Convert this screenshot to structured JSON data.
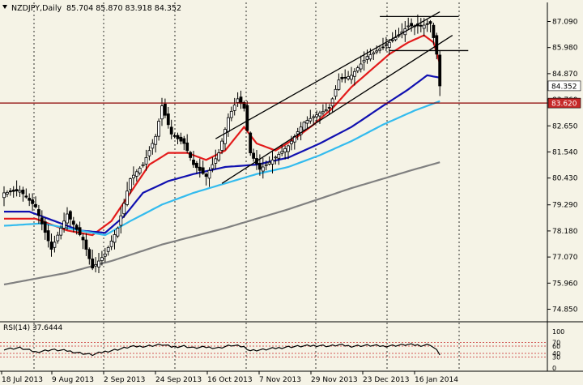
{
  "header": {
    "symbol_label": "NZDJPY,Daily",
    "ohlc": "85.704 85.870 83.918 84.352"
  },
  "rsi_header": "RSI(14) 37.6444",
  "colors": {
    "background": "#F5F3E6",
    "bull_candle": "#FFFFFF",
    "bear_candle": "#000000",
    "ema_fast": "#E31B1B",
    "ema_mid": "#1010B0",
    "ema_slow": "#33BBEE",
    "sma_long": "#808080",
    "support": "#8B0000",
    "price_badge": "#FFFFFF",
    "support_badge": "#C62828",
    "rsi_line": "#000000",
    "rsi_levels": "#C62828"
  },
  "chart_data": {
    "type": "candlestick",
    "instrument": "NZDJPY",
    "timeframe": "Daily",
    "ylim": [
      74.35,
      87.9
    ],
    "y_ticks": [
      "87.090",
      "85.980",
      "84.870",
      "83.760",
      "82.650",
      "81.540",
      "80.430",
      "79.290",
      "78.180",
      "77.070",
      "75.960",
      "74.850"
    ],
    "y_tick_values": [
      87.09,
      85.98,
      84.87,
      83.76,
      82.65,
      81.54,
      80.43,
      79.29,
      78.18,
      77.07,
      75.96,
      74.85
    ],
    "x_labels": [
      "18 Jul 2013",
      "9 Aug 2013",
      "2 Sep 2013",
      "24 Sep 2013",
      "16 Oct 2013",
      "7 Nov 2013",
      "29 Nov 2013",
      "23 Dec 2013",
      "16 Jan 2014"
    ],
    "last_price": 84.352,
    "last_price_label": "84.352",
    "support_level": 83.62,
    "support_label": "83.620",
    "close_anchors": [
      [
        0,
        79.8
      ],
      [
        5,
        79.9
      ],
      [
        10,
        79.2
      ],
      [
        15,
        77.4
      ],
      [
        20,
        78.9
      ],
      [
        25,
        77.8
      ],
      [
        28,
        76.6
      ],
      [
        32,
        77.2
      ],
      [
        36,
        78.3
      ],
      [
        40,
        80.4
      ],
      [
        44,
        81.0
      ],
      [
        48,
        82.2
      ],
      [
        50,
        83.5
      ],
      [
        53,
        82.3
      ],
      [
        57,
        81.9
      ],
      [
        60,
        81.0
      ],
      [
        64,
        80.5
      ],
      [
        68,
        81.5
      ],
      [
        71,
        83.0
      ],
      [
        74,
        83.8
      ],
      [
        76,
        83.4
      ],
      [
        78,
        81.5
      ],
      [
        81,
        80.8
      ],
      [
        85,
        81.2
      ],
      [
        90,
        81.8
      ],
      [
        95,
        82.8
      ],
      [
        100,
        83.2
      ],
      [
        103,
        83.4
      ],
      [
        106,
        84.6
      ],
      [
        110,
        84.8
      ],
      [
        115,
        85.6
      ],
      [
        120,
        86.0
      ],
      [
        124,
        86.4
      ],
      [
        128,
        86.9
      ],
      [
        132,
        86.9
      ],
      [
        135,
        87.0
      ],
      [
        136,
        86.4
      ],
      [
        137,
        85.7
      ],
      [
        138,
        84.35
      ]
    ],
    "ma_series": [
      {
        "name": "EMA fast",
        "color_key": "ema_fast",
        "values": [
          [
            0,
            78.7
          ],
          [
            10,
            78.7
          ],
          [
            20,
            78.2
          ],
          [
            28,
            78.0
          ],
          [
            34,
            78.6
          ],
          [
            40,
            79.8
          ],
          [
            46,
            81.0
          ],
          [
            52,
            81.5
          ],
          [
            58,
            81.5
          ],
          [
            64,
            81.2
          ],
          [
            70,
            81.6
          ],
          [
            76,
            82.6
          ],
          [
            80,
            81.9
          ],
          [
            86,
            81.6
          ],
          [
            92,
            82.1
          ],
          [
            98,
            82.7
          ],
          [
            104,
            83.4
          ],
          [
            110,
            84.3
          ],
          [
            116,
            85.0
          ],
          [
            122,
            85.7
          ],
          [
            128,
            86.2
          ],
          [
            133,
            86.5
          ],
          [
            136,
            86.2
          ],
          [
            138,
            85.3
          ]
        ]
      },
      {
        "name": "EMA mid",
        "color_key": "ema_mid",
        "values": [
          [
            0,
            79.0
          ],
          [
            8,
            79.0
          ],
          [
            16,
            78.6
          ],
          [
            24,
            78.2
          ],
          [
            32,
            78.1
          ],
          [
            38,
            78.8
          ],
          [
            44,
            79.8
          ],
          [
            52,
            80.3
          ],
          [
            60,
            80.6
          ],
          [
            70,
            80.9
          ],
          [
            80,
            81.0
          ],
          [
            90,
            81.3
          ],
          [
            100,
            81.9
          ],
          [
            110,
            82.6
          ],
          [
            120,
            83.5
          ],
          [
            128,
            84.2
          ],
          [
            134,
            84.8
          ],
          [
            138,
            84.7
          ]
        ]
      },
      {
        "name": "EMA slow",
        "color_key": "ema_slow",
        "values": [
          [
            0,
            78.4
          ],
          [
            12,
            78.5
          ],
          [
            24,
            78.2
          ],
          [
            32,
            78.0
          ],
          [
            40,
            78.6
          ],
          [
            50,
            79.3
          ],
          [
            60,
            79.8
          ],
          [
            70,
            80.2
          ],
          [
            80,
            80.6
          ],
          [
            90,
            80.9
          ],
          [
            100,
            81.4
          ],
          [
            110,
            82.0
          ],
          [
            120,
            82.7
          ],
          [
            130,
            83.3
          ],
          [
            138,
            83.7
          ]
        ]
      },
      {
        "name": "SMA long",
        "color_key": "sma_long",
        "values": [
          [
            0,
            75.9
          ],
          [
            20,
            76.4
          ],
          [
            34,
            76.9
          ],
          [
            50,
            77.6
          ],
          [
            70,
            78.3
          ],
          [
            90,
            79.1
          ],
          [
            110,
            80.0
          ],
          [
            130,
            80.8
          ],
          [
            138,
            81.1
          ]
        ]
      }
    ],
    "annotations": {
      "channel_upper": [
        [
          67,
          82.1
        ],
        [
          138,
          87.5
        ]
      ],
      "channel_lower": [
        [
          69,
          80.2
        ],
        [
          142,
          86.5
        ]
      ],
      "horizontal_top": [
        [
          119,
          87.3
        ],
        [
          144,
          87.3
        ]
      ],
      "horizontal_mid": [
        [
          122,
          85.85
        ],
        [
          147,
          85.85
        ]
      ]
    },
    "rsi": {
      "name": "RSI(14)",
      "value": 37.6444,
      "ylim": [
        0,
        100
      ],
      "levels": [
        70,
        60,
        40,
        30
      ],
      "axis_ticks": [
        "100",
        "70",
        "60",
        "40",
        "30",
        "0"
      ],
      "axis_tick_values": [
        100,
        70,
        60,
        40,
        30,
        0
      ],
      "anchors": [
        [
          0,
          52
        ],
        [
          5,
          55
        ],
        [
          10,
          44
        ],
        [
          15,
          50
        ],
        [
          20,
          47
        ],
        [
          25,
          40
        ],
        [
          28,
          36
        ],
        [
          32,
          45
        ],
        [
          36,
          51
        ],
        [
          40,
          58
        ],
        [
          45,
          60
        ],
        [
          50,
          64
        ],
        [
          53,
          58
        ],
        [
          57,
          60
        ],
        [
          60,
          55
        ],
        [
          64,
          57
        ],
        [
          68,
          55
        ],
        [
          72,
          62
        ],
        [
          76,
          58
        ],
        [
          78,
          48
        ],
        [
          82,
          50
        ],
        [
          86,
          54
        ],
        [
          90,
          58
        ],
        [
          95,
          60
        ],
        [
          100,
          62
        ],
        [
          103,
          60
        ],
        [
          106,
          63
        ],
        [
          110,
          60
        ],
        [
          115,
          62
        ],
        [
          120,
          60
        ],
        [
          124,
          62
        ],
        [
          128,
          64
        ],
        [
          132,
          62
        ],
        [
          135,
          64
        ],
        [
          137,
          48
        ],
        [
          138,
          37.6
        ]
      ]
    }
  }
}
